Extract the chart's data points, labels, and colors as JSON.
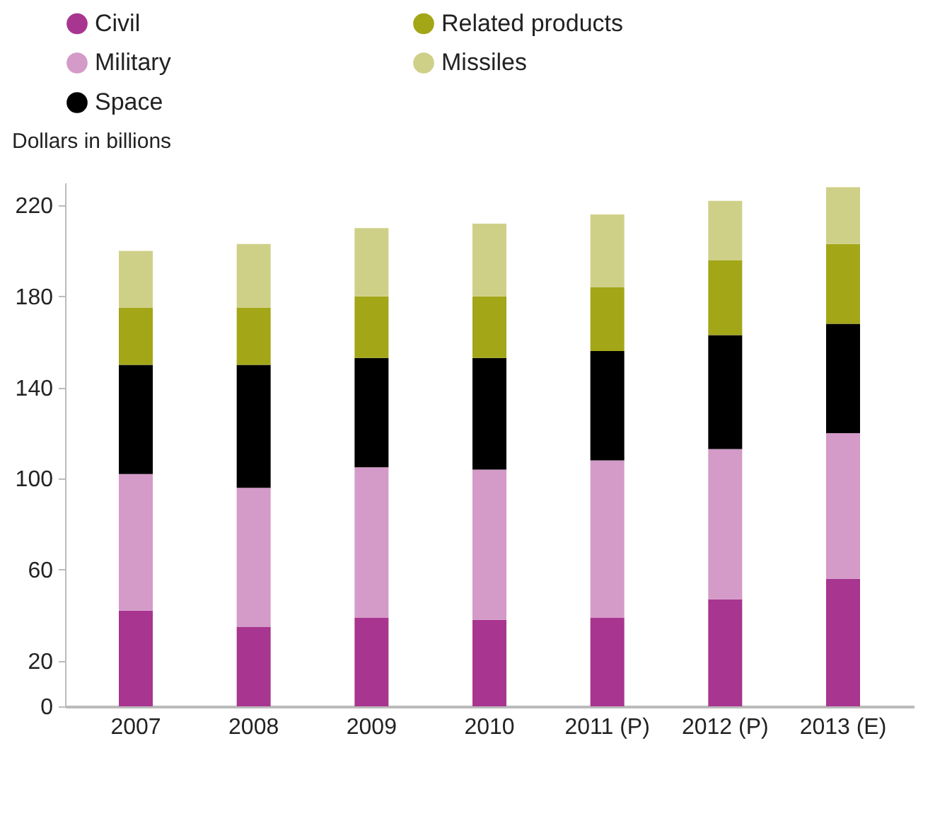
{
  "chart_data": {
    "type": "bar",
    "stacked": true,
    "ylabel": "Dollars in billions",
    "categories": [
      "2007",
      "2008",
      "2009",
      "2010",
      "2011 (P)",
      "2012 (P)",
      "2013 (E)"
    ],
    "series": [
      {
        "name": "Civil",
        "color": "#a8358f",
        "values": [
          42,
          35,
          39,
          38,
          39,
          47,
          56
        ]
      },
      {
        "name": "Military",
        "color": "#d49ac8",
        "values": [
          60,
          61,
          66,
          66,
          69,
          66,
          64
        ]
      },
      {
        "name": "Space",
        "color": "#000000",
        "values": [
          48,
          54,
          48,
          49,
          48,
          50,
          48
        ]
      },
      {
        "name": "Related products",
        "color": "#a3a617",
        "values": [
          25,
          25,
          27,
          27,
          28,
          33,
          35
        ]
      },
      {
        "name": "Missiles",
        "color": "#cfd088",
        "values": [
          25,
          28,
          30,
          32,
          32,
          26,
          25
        ]
      }
    ],
    "ylim": [
      0,
      230
    ],
    "yticks": [
      0,
      20,
      60,
      100,
      140,
      180,
      220
    ],
    "grid": false,
    "legend": "top"
  }
}
